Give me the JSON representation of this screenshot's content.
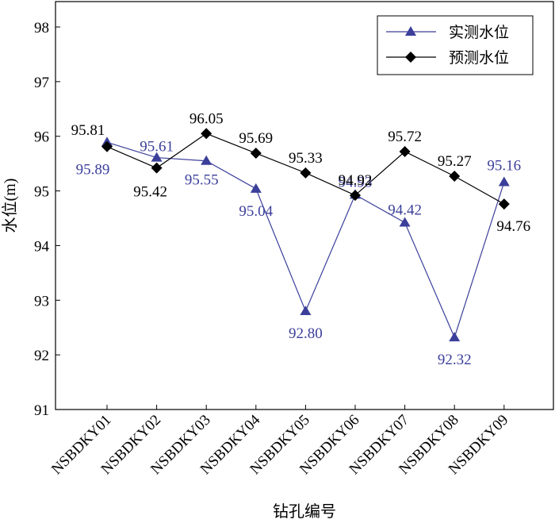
{
  "chart_data": {
    "type": "line",
    "xlabel": "钻孔编号",
    "ylabel": "水位(m)",
    "ylim": [
      91,
      98
    ],
    "yticks": [
      91,
      92,
      93,
      94,
      95,
      96,
      97,
      98
    ],
    "categories": [
      "NSBDKY01",
      "NSBDKY02",
      "NSBDKY03",
      "NSBDKY04",
      "NSBDKY05",
      "NSBDKY06",
      "NSBDKY07",
      "NSBDKY08",
      "NSBDKY09"
    ],
    "series": [
      {
        "name": "实测水位",
        "marker": "triangle",
        "color": "#3b3f9a",
        "values": [
          95.89,
          95.61,
          95.55,
          95.04,
          92.8,
          94.93,
          94.42,
          92.32,
          95.16
        ]
      },
      {
        "name": "预测水位",
        "marker": "diamond",
        "color": "#000000",
        "values": [
          95.81,
          95.42,
          96.05,
          95.69,
          95.33,
          94.92,
          95.72,
          95.27,
          94.76
        ]
      }
    ],
    "labels": {
      "actual": [
        "95.89",
        "95.61",
        "95.55",
        "95.04",
        "92.80",
        "94.93",
        "94.42",
        "92.32",
        "95.16"
      ],
      "predicted": [
        "95.81",
        "95.42",
        "96.05",
        "95.69",
        "95.33",
        "94.92",
        "95.72",
        "95.27",
        "94.76"
      ]
    },
    "legend": {
      "position": "top-right"
    },
    "grid": false
  }
}
